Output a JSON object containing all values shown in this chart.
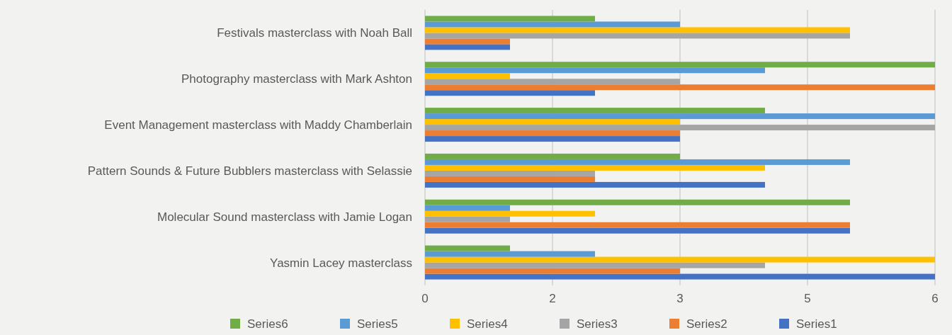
{
  "chart_data": {
    "type": "bar",
    "orientation": "horizontal",
    "categories": [
      "Festivals masterclass with Noah Ball",
      "Photography masterclass with Mark Ashton",
      "Event Management masterclass with Maddy Chamberlain",
      "Pattern Sounds & Future Bubblers masterclass with Selassie",
      "Molecular Sound masterclass with Jamie Logan",
      "Yasmin Lacey masterclass"
    ],
    "series": [
      {
        "name": "Series1",
        "color": "#4472c4",
        "values": [
          1,
          2,
          3,
          4,
          5,
          6
        ]
      },
      {
        "name": "Series2",
        "color": "#ed7d31",
        "values": [
          1,
          6,
          3,
          2,
          5,
          3
        ]
      },
      {
        "name": "Series3",
        "color": "#a5a5a5",
        "values": [
          5,
          3,
          6,
          2,
          1,
          4
        ]
      },
      {
        "name": "Series4",
        "color": "#ffc000",
        "values": [
          5,
          1,
          3,
          4,
          2,
          6
        ]
      },
      {
        "name": "Series5",
        "color": "#5b9bd5",
        "values": [
          3,
          4,
          6,
          5,
          1,
          2
        ]
      },
      {
        "name": "Series6",
        "color": "#70ad47",
        "values": [
          2,
          6,
          4,
          3,
          5,
          1
        ]
      }
    ],
    "xlim": [
      0,
      6
    ],
    "xticks": [
      0,
      {
        "value": 1.5,
        "label": "2"
      },
      3,
      {
        "value": 4.5,
        "label": "5"
      },
      6
    ],
    "grid": "x",
    "legend": "bottom"
  }
}
